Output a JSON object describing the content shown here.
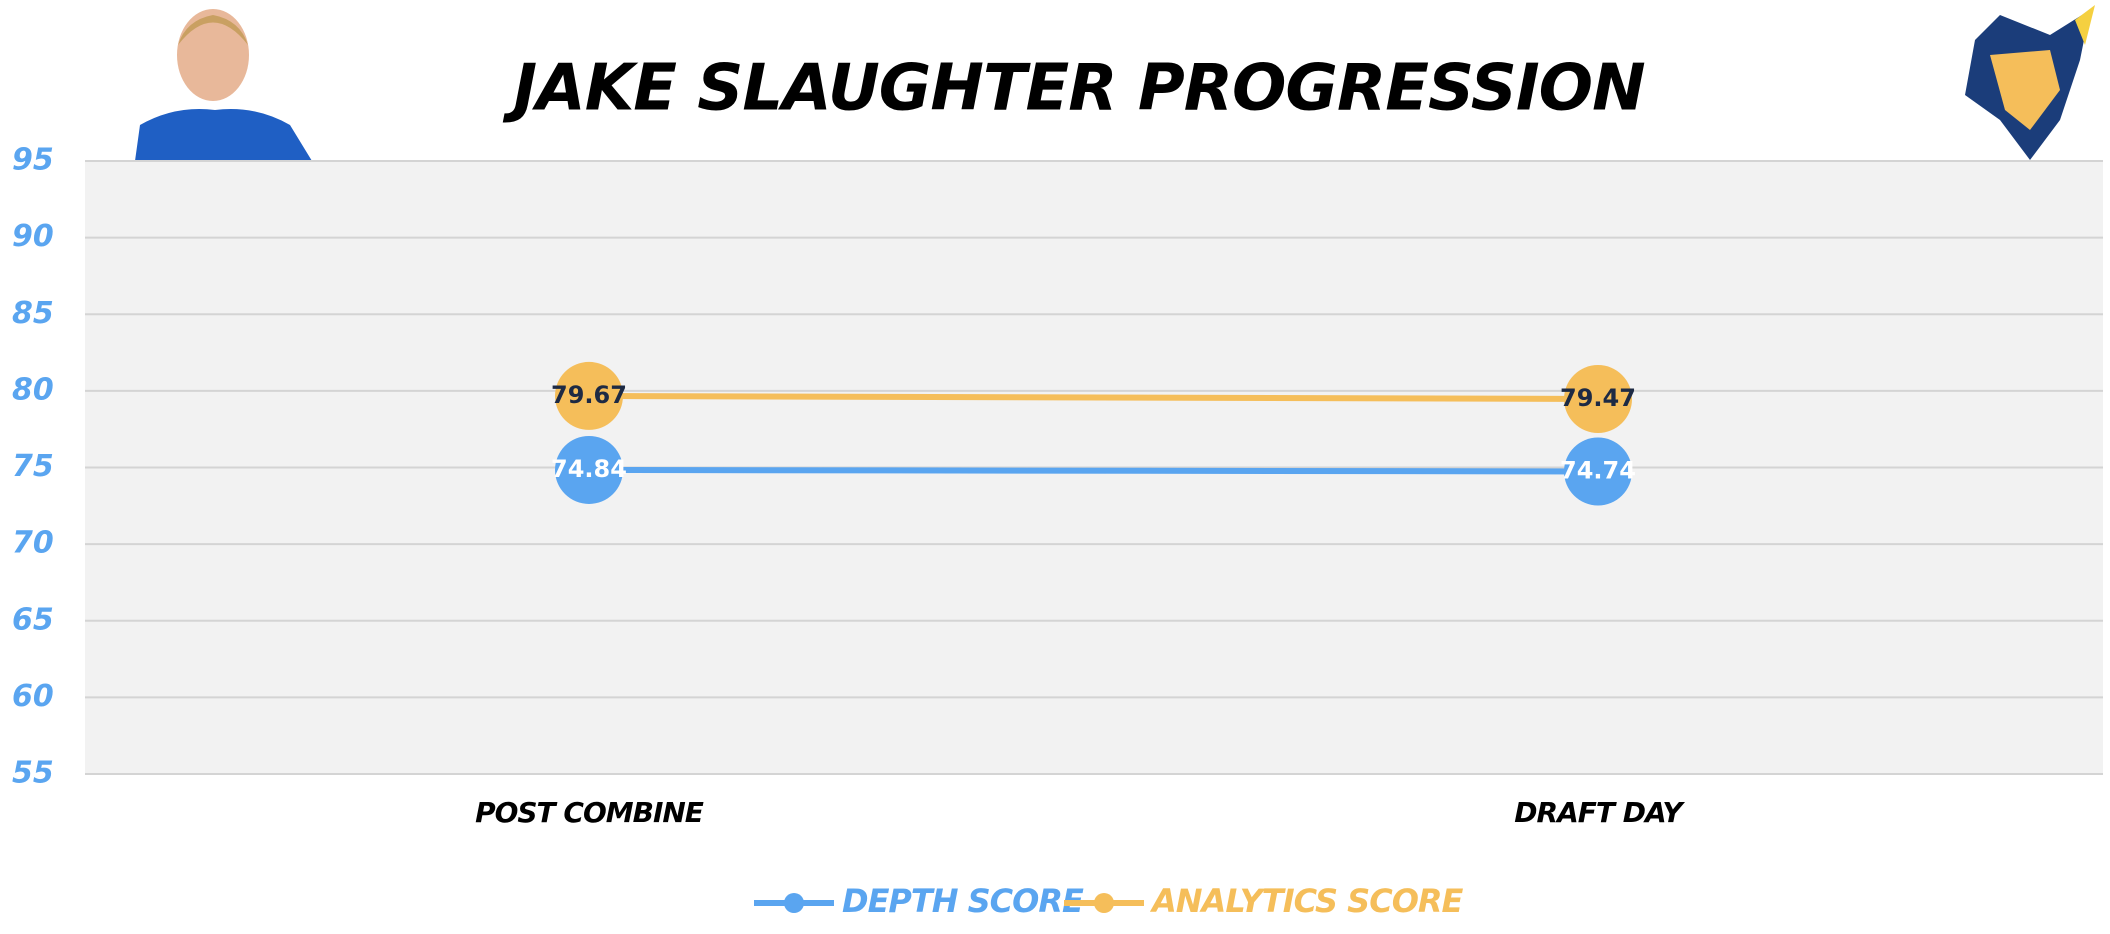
{
  "chart_data": {
    "type": "line",
    "title": "JAKE SLAUGHTER PROGRESSION",
    "categories": [
      "POST COMBINE",
      "DRAFT DAY"
    ],
    "series": [
      {
        "name": "DEPTH SCORE",
        "color": "#5aa5f0",
        "values": [
          74.84,
          74.74
        ]
      },
      {
        "name": "ANALYTICS SCORE",
        "color": "#f5be5a",
        "values": [
          79.67,
          79.47
        ]
      }
    ],
    "ylim": [
      55,
      95
    ],
    "yticks": [
      55,
      60,
      65,
      70,
      75,
      80,
      85,
      90,
      95
    ],
    "grid": true
  }
}
